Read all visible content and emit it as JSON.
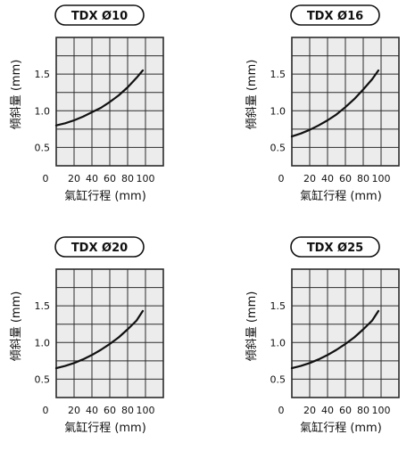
{
  "chart_data": [
    {
      "type": "line",
      "title": "TDX Ø10",
      "xlabel": "氣缸行程 (mm)",
      "ylabel": "傾斜量 (mm)",
      "x_ticks": [
        0,
        20,
        40,
        60,
        80,
        100
      ],
      "y_ticks": [
        0.5,
        1.0,
        1.5
      ],
      "x_tick_labels": [
        "0",
        "20",
        "40",
        "60",
        "80",
        "100"
      ],
      "y_tick_labels": [
        "0.5",
        "1.0",
        "1.5"
      ],
      "xlim": [
        0,
        120
      ],
      "ylim": [
        0.25,
        2.0
      ],
      "grid": true,
      "series": [
        {
          "x": [
            0,
            10,
            20,
            30,
            40,
            50,
            60,
            70,
            80,
            90,
            97
          ],
          "values": [
            0.8,
            0.83,
            0.87,
            0.92,
            0.98,
            1.04,
            1.12,
            1.21,
            1.32,
            1.45,
            1.55
          ]
        }
      ]
    },
    {
      "type": "line",
      "title": "TDX Ø16",
      "xlabel": "氣缸行程 (mm)",
      "ylabel": "傾斜量 (mm)",
      "x_ticks": [
        0,
        20,
        40,
        60,
        80,
        100
      ],
      "y_ticks": [
        0.5,
        1.0,
        1.5
      ],
      "x_tick_labels": [
        "0",
        "20",
        "40",
        "60",
        "80",
        "100"
      ],
      "y_tick_labels": [
        "0.5",
        "1.0",
        "1.5"
      ],
      "xlim": [
        0,
        120
      ],
      "ylim": [
        0.25,
        2.0
      ],
      "grid": true,
      "series": [
        {
          "x": [
            0,
            10,
            20,
            30,
            40,
            50,
            60,
            70,
            80,
            90,
            97
          ],
          "values": [
            0.65,
            0.69,
            0.74,
            0.8,
            0.87,
            0.95,
            1.05,
            1.16,
            1.29,
            1.43,
            1.55
          ]
        }
      ]
    },
    {
      "type": "line",
      "title": "TDX Ø20",
      "xlabel": "氣缸行程 (mm)",
      "ylabel": "傾斜量 (mm)",
      "x_ticks": [
        0,
        20,
        40,
        60,
        80,
        100
      ],
      "y_ticks": [
        0.5,
        1.0,
        1.5
      ],
      "x_tick_labels": [
        "0",
        "20",
        "40",
        "60",
        "80",
        "100"
      ],
      "y_tick_labels": [
        "0.5",
        "1.0",
        "1.5"
      ],
      "xlim": [
        0,
        120
      ],
      "ylim": [
        0.25,
        2.0
      ],
      "grid": true,
      "series": [
        {
          "x": [
            0,
            10,
            20,
            30,
            40,
            50,
            60,
            70,
            80,
            90,
            97
          ],
          "values": [
            0.65,
            0.68,
            0.72,
            0.77,
            0.83,
            0.9,
            0.98,
            1.07,
            1.18,
            1.3,
            1.43
          ]
        }
      ]
    },
    {
      "type": "line",
      "title": "TDX Ø25",
      "xlabel": "氣缸行程 (mm)",
      "ylabel": "傾斜量 (mm)",
      "x_ticks": [
        0,
        20,
        40,
        60,
        80,
        100
      ],
      "y_ticks": [
        0.5,
        1.0,
        1.5
      ],
      "x_tick_labels": [
        "0",
        "20",
        "40",
        "60",
        "80",
        "100"
      ],
      "y_tick_labels": [
        "0.5",
        "1.0",
        "1.5"
      ],
      "xlim": [
        0,
        120
      ],
      "ylim": [
        0.25,
        2.0
      ],
      "grid": true,
      "series": [
        {
          "x": [
            0,
            10,
            20,
            30,
            40,
            50,
            60,
            70,
            80,
            90,
            97
          ],
          "values": [
            0.65,
            0.68,
            0.72,
            0.77,
            0.83,
            0.9,
            0.98,
            1.07,
            1.18,
            1.3,
            1.43
          ]
        }
      ]
    }
  ],
  "colors": {
    "plot_background": "#ececec",
    "grid": "#2b2b2b",
    "curve": "#111111",
    "text": "#111111"
  }
}
